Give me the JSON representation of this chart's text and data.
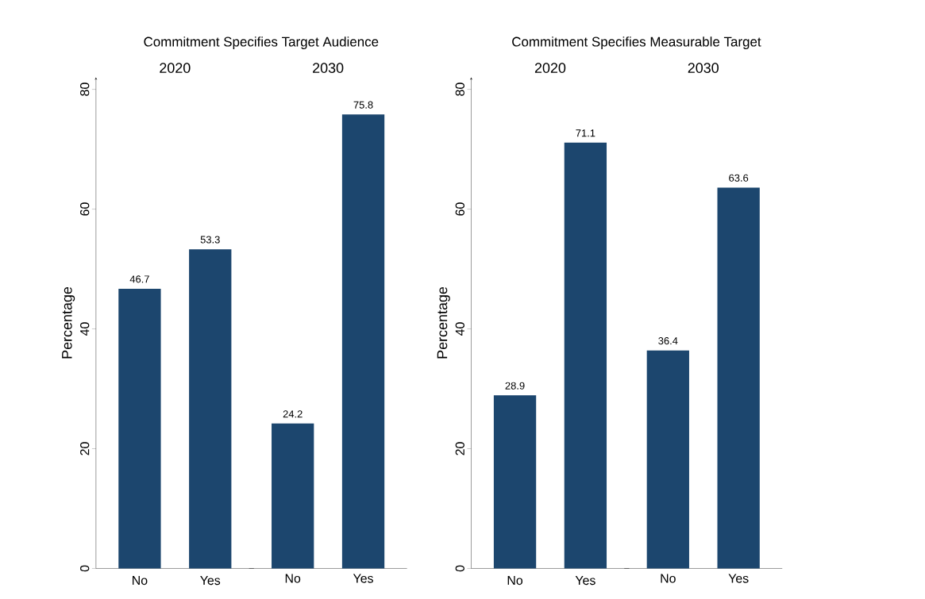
{
  "chart_data": [
    {
      "type": "bar",
      "title": "Commitment Specifies Target Audience",
      "subtitle": "2020",
      "ylabel": "Percentage",
      "categories": [
        "No",
        "Yes"
      ],
      "values": [
        46.7,
        53.3
      ],
      "color": "#1c466e",
      "ylim": [
        0,
        82
      ],
      "yticks": [
        0,
        20,
        40,
        60,
        80
      ],
      "data_labels": true
    },
    {
      "type": "bar",
      "subtitle": "2030",
      "categories": [
        "No",
        "Yes"
      ],
      "values": [
        24.2,
        75.8
      ],
      "color": "#1c466e",
      "tick_labels": "x",
      "data_labels": true
    },
    {
      "type": "bar",
      "title": "Commitment Specifies Measurable Target",
      "subtitle": "2020",
      "ylabel": "Percentage",
      "categories": [
        "No",
        "Yes"
      ],
      "values": [
        28.9,
        71.1
      ],
      "color": "#1c466e",
      "ylim": [
        0,
        82
      ],
      "yticks": [
        0,
        20,
        40,
        60,
        80
      ],
      "data_labels": true
    },
    {
      "type": "bar",
      "subtitle": "2030",
      "categories": [
        "No",
        "Yes"
      ],
      "values": [
        36.4,
        63.6
      ],
      "color": "#1c466e",
      "tick_labels": "x",
      "data_labels": true
    }
  ]
}
